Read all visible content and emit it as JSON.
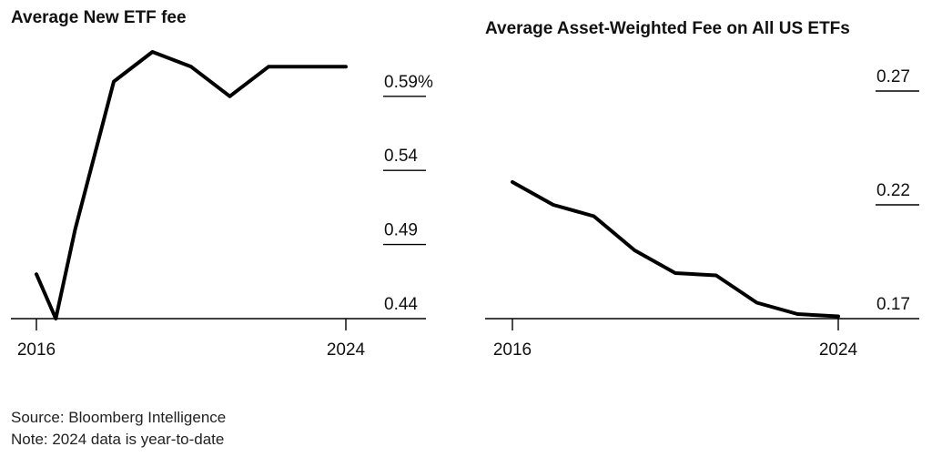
{
  "chart_data": [
    {
      "type": "line",
      "title": "Average New ETF fee",
      "x": [
        2016,
        2016.5,
        2017,
        2018,
        2019,
        2020,
        2021,
        2022,
        2023,
        2024
      ],
      "series": [
        {
          "values": [
            0.47,
            0.44,
            0.5,
            0.6,
            0.62,
            0.61,
            0.59,
            0.61,
            0.61,
            0.61
          ]
        }
      ],
      "xticks": [
        "2016",
        "2024"
      ],
      "yticks": [
        {
          "value": 0.44,
          "label": "0.44"
        },
        {
          "value": 0.49,
          "label": "0.49"
        },
        {
          "value": 0.54,
          "label": "0.54"
        },
        {
          "value": 0.59,
          "label": "0.59%"
        }
      ],
      "xlim": [
        2016,
        2024
      ],
      "ylim": [
        0.44,
        0.62
      ],
      "color": "#000000"
    },
    {
      "type": "line",
      "title": "Average Asset-Weighted Fee on All US ETFs",
      "x": [
        2016,
        2017,
        2018,
        2019,
        2020,
        2021,
        2022,
        2023,
        2024
      ],
      "series": [
        {
          "values": [
            0.23,
            0.22,
            0.215,
            0.2,
            0.19,
            0.189,
            0.177,
            0.172,
            0.171
          ]
        }
      ],
      "xticks": [
        "2016",
        "2024"
      ],
      "yticks": [
        {
          "value": 0.17,
          "label": "0.17"
        },
        {
          "value": 0.22,
          "label": "0.22"
        },
        {
          "value": 0.27,
          "label": "0.27"
        }
      ],
      "xlim": [
        2016,
        2024
      ],
      "ylim": [
        0.17,
        0.27
      ],
      "color": "#000000"
    }
  ],
  "footer": {
    "source": "Source: Bloomberg Intelligence",
    "note": "Note: 2024 data is year-to-date"
  }
}
